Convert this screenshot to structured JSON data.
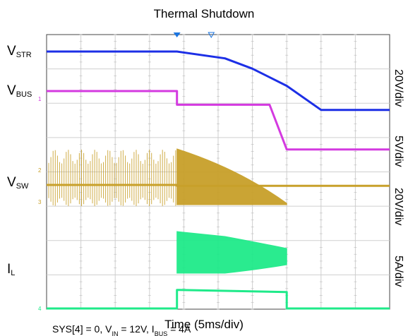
{
  "chart_data": {
    "type": "line",
    "title": "Thermal Shutdown",
    "xlabel": "Time (5ms/div)",
    "x_div": 10,
    "y_div": 8,
    "annotation": {
      "sys": "SYS[4] = 0, V",
      "vin_sub": "IN",
      "vin_val": " = 12V, I",
      "ibus_sub": "BUS",
      "ibus_val": " = 4A"
    },
    "channels": [
      {
        "id": "vstr",
        "label": "V",
        "sub": "STR",
        "scale": "20V/div",
        "color": "#1c2fe6"
      },
      {
        "id": "vbus",
        "label": "V",
        "sub": "BUS",
        "scale": "5V/div",
        "color": "#d43ae0"
      },
      {
        "id": "vsw",
        "label": "V",
        "sub": "SW",
        "scale": "20V/div",
        "color": "#c8a02a"
      },
      {
        "id": "il",
        "label": "I",
        "sub": "L",
        "scale": "5A/div",
        "color": "#1fea8a"
      }
    ],
    "series": [
      {
        "name": "V_STR",
        "x": [
          0,
          3.8,
          5.2,
          6.0,
          7.0,
          8.0,
          10
        ],
        "y": [
          4.5,
          4.5,
          4.3,
          4.0,
          3.5,
          2.8,
          2.8
        ]
      },
      {
        "name": "V_BUS",
        "x": [
          0,
          3.8,
          3.8,
          6.5,
          7.0,
          10
        ],
        "y": [
          3.0,
          3.0,
          2.6,
          2.6,
          1.3,
          1.3
        ]
      },
      {
        "name": "V_SW",
        "x": [
          0,
          3.8,
          3.8,
          7.0,
          10
        ],
        "y": [
          0.1,
          0.1,
          0.0,
          0.0,
          0.0
        ]
      },
      {
        "name": "I_L",
        "x": [
          0,
          3.8,
          3.8,
          7.0,
          7.0,
          10
        ],
        "y": [
          -2.0,
          -2.0,
          -1.1,
          -1.2,
          -2.0,
          -2.0
        ]
      }
    ]
  }
}
